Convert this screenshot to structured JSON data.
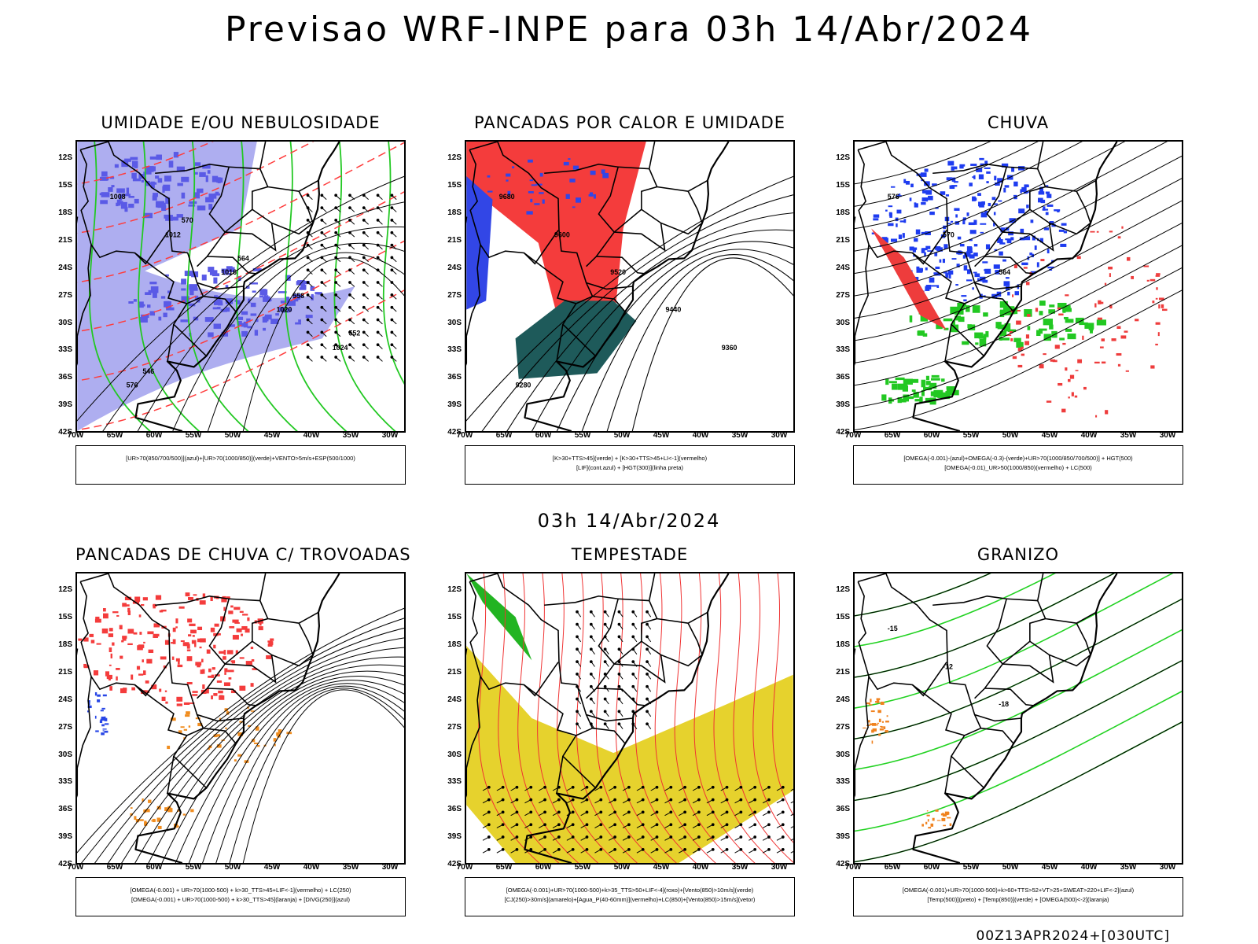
{
  "header": {
    "title": "Previsao WRF-INPE  para 03h 14/Abr/2024",
    "mid_title": "03h 14/Abr/2024",
    "footer": "00Z13APR2024+[030UTC]"
  },
  "axes": {
    "lat_labels": [
      "12S",
      "15S",
      "18S",
      "21S",
      "24S",
      "27S",
      "30S",
      "33S",
      "36S",
      "39S",
      "42S"
    ],
    "lon_labels": [
      "70W",
      "65W",
      "60W",
      "55W",
      "50W",
      "45W",
      "40W",
      "35W",
      "30W"
    ]
  },
  "panels": [
    {
      "id": "umidade",
      "title": "UMIDADE E/OU NEBULOSIDADE",
      "legend": [
        "[UR>70(850/700/500)](azul)+[UR>70(1000/850)](verde)+VENTO>5m/s+ESP(500/1000)"
      ],
      "colors": {
        "blue": "#5a5ae6",
        "lightblue": "#aeaef0",
        "green": "#22c822",
        "red": "#ff3c3c"
      },
      "labels": [
        "1008",
        "1012",
        "1016",
        "1020",
        "1024",
        "576",
        "570",
        "564",
        "558",
        "552",
        "546"
      ]
    },
    {
      "id": "pancadas-calor",
      "title": "PANCADAS POR CALOR E UMIDADE",
      "legend": [
        "[K>30+TTS>45](verde) + [K>30+TTS>45+LI<-1](vermelho)",
        "[LIF](cont.azul) + [HGT(300)](linha preta)"
      ],
      "colors": {
        "red": "#f43c3c",
        "teal": "#1e5a5a",
        "blue": "#3246e6"
      },
      "labels": [
        "9680",
        "9600",
        "9520",
        "9440",
        "9360",
        "9280"
      ]
    },
    {
      "id": "chuva",
      "title": "CHUVA",
      "legend": [
        "[OMEGA(-0.001)-(azul)+OMEGA(-0.3)-(verde)+UR>70(1000/850/700/500)] + HGT(500)",
        "[OMEGA(-0.01)_UR>50(1000/850)(vermelho) + LC(500)"
      ],
      "colors": {
        "blue": "#1e3cf0",
        "green": "#22c822",
        "red": "#ee3c3c"
      },
      "labels": [
        "576",
        "570",
        "564"
      ]
    },
    {
      "id": "trovoadas",
      "title": "PANCADAS DE CHUVA C/ TROVOADAS",
      "legend": [
        "[OMEGA(-0.001) + UR>70(1000-500) + k>30_TTS>45+LIF<-1](vermelho) + LC(250)",
        "[OMEGA(-0.001) + UR>70(1000-500) + k>30_TTS>45](laranja) + [DIVG(250)](azul)"
      ],
      "colors": {
        "red": "#f43c3c",
        "orange": "#f08c1e",
        "blue": "#2846e6"
      },
      "labels": []
    },
    {
      "id": "tempestade",
      "title": "TEMPESTADE",
      "legend": [
        "[OMEGA(-0.001)+UR>70(1000-500)+k>35_TTS>50+LIF<-4](roxo)+[Vento(850)>10m/s](verde)",
        "[CJ(250)>30m/s](amarelo)+[Agua_P(40-60mm)](vermelho)+LC(850)+[Vento(850)>15m/s](vetor)"
      ],
      "colors": {
        "yellow": "#e6d22d",
        "red": "#f03232",
        "green": "#22b422"
      },
      "labels": []
    },
    {
      "id": "granizo",
      "title": "GRANIZO",
      "legend": [
        "[OMEGA(-0.001)+UR>70(1000-500)+k>60+TTS>52+VT>25+SWEAT>220+LIF<-2](azul)",
        "[Temp(500)](preto) + [Temp(850)](verde) + [OMEGA(500)<-2](laranja)"
      ],
      "colors": {
        "green": "#22d222",
        "orange": "#f0821e"
      },
      "labels": [
        "-15",
        "-12",
        "-18"
      ]
    }
  ]
}
